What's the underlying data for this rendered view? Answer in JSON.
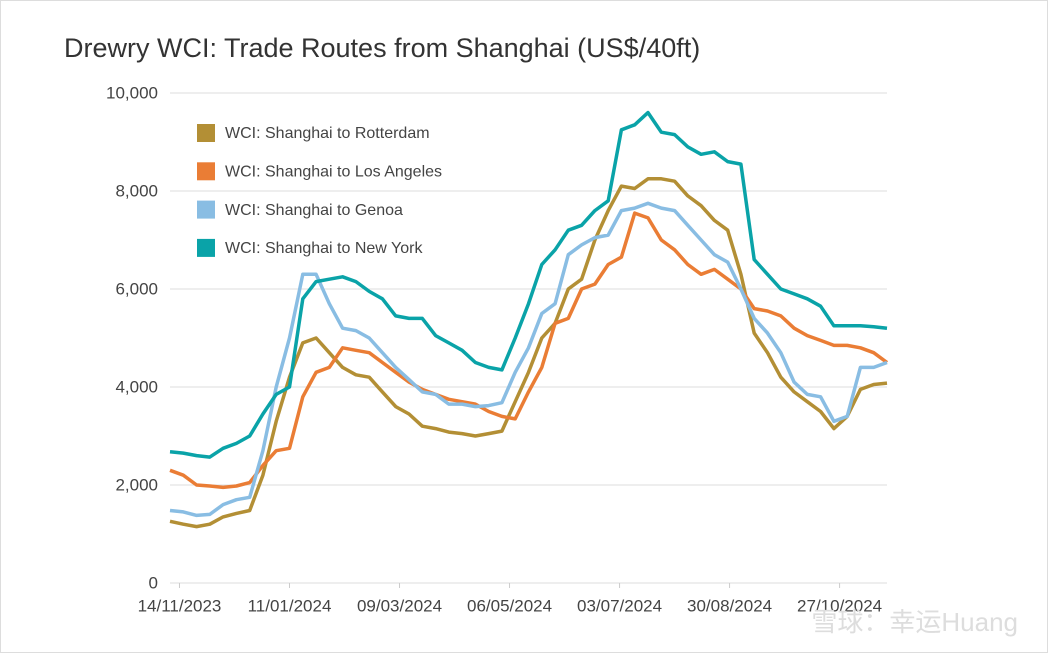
{
  "chart_data": {
    "type": "line",
    "title": "Drewry WCI: Trade Routes from Shanghai (US$/40ft)",
    "x": [
      "09/11/2023",
      "16/11/2023",
      "23/11/2023",
      "30/11/2023",
      "07/12/2023",
      "14/12/2023",
      "21/12/2023",
      "28/12/2023",
      "04/01/2024",
      "11/01/2024",
      "18/01/2024",
      "25/01/2024",
      "01/02/2024",
      "08/02/2024",
      "15/02/2024",
      "22/02/2024",
      "29/02/2024",
      "07/03/2024",
      "14/03/2024",
      "21/03/2024",
      "28/03/2024",
      "04/04/2024",
      "11/04/2024",
      "18/04/2024",
      "25/04/2024",
      "02/05/2024",
      "09/05/2024",
      "16/05/2024",
      "23/05/2024",
      "30/05/2024",
      "06/06/2024",
      "13/06/2024",
      "20/06/2024",
      "27/06/2024",
      "04/07/2024",
      "11/07/2024",
      "18/07/2024",
      "25/07/2024",
      "01/08/2024",
      "08/08/2024",
      "15/08/2024",
      "22/08/2024",
      "29/08/2024",
      "05/09/2024",
      "12/09/2024",
      "19/09/2024",
      "26/09/2024",
      "03/10/2024",
      "10/10/2024",
      "17/10/2024",
      "24/10/2024",
      "31/10/2024",
      "07/11/2024",
      "14/11/2024",
      "21/11/2024"
    ],
    "series": [
      {
        "name": "WCI: Shanghai to Rotterdam",
        "color": "#b38f35",
        "values": [
          1260,
          1200,
          1150,
          1200,
          1350,
          1420,
          1480,
          2200,
          3300,
          4200,
          4900,
          5000,
          4700,
          4400,
          4250,
          4200,
          3900,
          3600,
          3450,
          3200,
          3150,
          3080,
          3050,
          3000,
          3050,
          3100,
          3700,
          4300,
          5000,
          5300,
          6000,
          6200,
          7000,
          7600,
          8100,
          8050,
          8250,
          8250,
          8200,
          7900,
          7700,
          7400,
          7200,
          6300,
          5100,
          4700,
          4200,
          3900,
          3700,
          3500,
          3150,
          3400,
          3950,
          4050,
          4080
        ]
      },
      {
        "name": "WCI: Shanghai to Los Angeles",
        "color": "#ea7d35",
        "values": [
          2300,
          2200,
          2000,
          1980,
          1950,
          1980,
          2050,
          2400,
          2700,
          2750,
          3800,
          4300,
          4400,
          4800,
          4750,
          4700,
          4500,
          4300,
          4100,
          3950,
          3850,
          3750,
          3700,
          3650,
          3500,
          3400,
          3350,
          3900,
          4400,
          5300,
          5400,
          6000,
          6100,
          6500,
          6650,
          7550,
          7450,
          7000,
          6800,
          6500,
          6300,
          6400,
          6200,
          6000,
          5600,
          5550,
          5450,
          5200,
          5050,
          4950,
          4850,
          4850,
          4800,
          4700,
          4500
        ]
      },
      {
        "name": "WCI: Shanghai to Genoa",
        "color": "#89bde3",
        "values": [
          1480,
          1450,
          1380,
          1400,
          1600,
          1700,
          1750,
          2700,
          4000,
          5000,
          6300,
          6300,
          5700,
          5200,
          5150,
          5000,
          4700,
          4400,
          4150,
          3900,
          3850,
          3650,
          3650,
          3600,
          3620,
          3680,
          4300,
          4800,
          5500,
          5700,
          6700,
          6900,
          7050,
          7100,
          7600,
          7650,
          7750,
          7650,
          7600,
          7300,
          7000,
          6700,
          6550,
          6000,
          5400,
          5100,
          4700,
          4100,
          3850,
          3800,
          3300,
          3400,
          4400,
          4400,
          4500
        ]
      },
      {
        "name": "WCI: Shanghai to New York",
        "color": "#0aa3a8",
        "values": [
          2680,
          2650,
          2600,
          2570,
          2750,
          2850,
          3000,
          3450,
          3850,
          4000,
          5800,
          6150,
          6200,
          6250,
          6150,
          5950,
          5800,
          5450,
          5400,
          5400,
          5050,
          4900,
          4750,
          4500,
          4400,
          4350,
          5000,
          5700,
          6500,
          6800,
          7200,
          7300,
          7600,
          7800,
          9250,
          9350,
          9600,
          9200,
          9150,
          8900,
          8750,
          8800,
          8600,
          8550,
          6600,
          6300,
          6000,
          5900,
          5800,
          5650,
          5250,
          5250,
          5250,
          5230,
          5200
        ]
      }
    ],
    "xlim": [
      "09/11/2023",
      "21/11/2024"
    ],
    "xticks": [
      "14/11/2023",
      "11/01/2024",
      "09/03/2024",
      "06/05/2024",
      "03/07/2024",
      "30/08/2024",
      "27/10/2024"
    ],
    "ylim": [
      0,
      10000
    ],
    "yticks": [
      0,
      {
        "value": 2000,
        "label": "2,000"
      },
      {
        "value": 4000,
        "label": "4,000"
      },
      {
        "value": 6000,
        "label": "6,000"
      },
      {
        "value": 8000,
        "label": "8,000"
      },
      {
        "value": 10000,
        "label": "10,000"
      }
    ],
    "grid": true,
    "legend": "top-left",
    "watermark": "雪球：幸运Huang"
  }
}
